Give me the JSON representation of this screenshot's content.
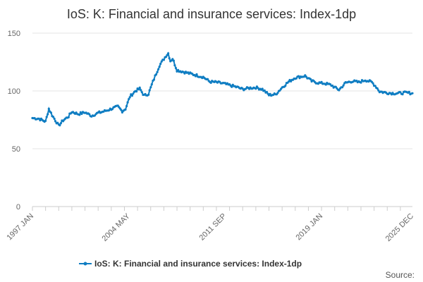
{
  "chart_data": {
    "type": "line",
    "title": "IoS: K: Financial and insurance services: Index-1dp",
    "xlabel": "",
    "ylabel": "",
    "x_range": [
      "1997 JAN",
      "2025 DEC"
    ],
    "x_tick_labels": [
      "1997 JAN",
      "2004 MAY",
      "2011 SEP",
      "2019 JAN",
      "2025 DEC"
    ],
    "ylim": [
      0,
      150
    ],
    "y_tick_values": [
      0,
      50,
      100,
      150
    ],
    "y_tick_labels": [
      "0",
      "50",
      "100",
      "150"
    ],
    "grid": true,
    "legend_position": "bottom",
    "series": [
      {
        "name": "IoS: K: Financial and insurance services: Index-1dp",
        "color": "#0f7dc2",
        "frequency": "monthly",
        "anchor_points": [
          [
            "1997-01",
            76.5
          ],
          [
            "1997-07",
            76.0
          ],
          [
            "1998-01",
            73.5
          ],
          [
            "1998-04",
            84.5
          ],
          [
            "1998-07",
            79.0
          ],
          [
            "1999-01",
            70.0
          ],
          [
            "1999-05",
            74.5
          ],
          [
            "1999-10",
            78.0
          ],
          [
            "2000-01",
            82.0
          ],
          [
            "2000-07",
            80.0
          ],
          [
            "2001-01",
            81.5
          ],
          [
            "2001-07",
            78.5
          ],
          [
            "2002-01",
            81.0
          ],
          [
            "2002-07",
            82.5
          ],
          [
            "2003-01",
            84.5
          ],
          [
            "2003-07",
            86.5
          ],
          [
            "2003-11",
            82.5
          ],
          [
            "2004-02",
            84.5
          ],
          [
            "2004-06",
            95.0
          ],
          [
            "2004-11",
            100.0
          ],
          [
            "2005-03",
            102.0
          ],
          [
            "2005-07",
            96.0
          ],
          [
            "2005-11",
            97.5
          ],
          [
            "2006-03",
            108.0
          ],
          [
            "2006-09",
            122.0
          ],
          [
            "2007-03",
            130.5
          ],
          [
            "2007-05",
            132.5
          ],
          [
            "2007-07",
            126.0
          ],
          [
            "2007-09",
            128.0
          ],
          [
            "2008-01",
            118.0
          ],
          [
            "2008-07",
            116.5
          ],
          [
            "2009-01",
            115.0
          ],
          [
            "2009-07",
            113.5
          ],
          [
            "2010-01",
            112.0
          ],
          [
            "2010-07",
            108.0
          ],
          [
            "2011-01",
            107.5
          ],
          [
            "2011-07",
            106.5
          ],
          [
            "2012-01",
            105.0
          ],
          [
            "2012-07",
            103.5
          ],
          [
            "2013-01",
            101.5
          ],
          [
            "2013-07",
            102.5
          ],
          [
            "2014-01",
            103.0
          ],
          [
            "2014-07",
            101.5
          ],
          [
            "2015-01",
            96.5
          ],
          [
            "2015-07",
            97.0
          ],
          [
            "2016-01",
            103.0
          ],
          [
            "2016-07",
            108.0
          ],
          [
            "2017-01",
            111.5
          ],
          [
            "2017-07",
            112.5
          ],
          [
            "2017-10",
            113.0
          ],
          [
            "2018-04",
            108.5
          ],
          [
            "2018-10",
            107.0
          ],
          [
            "2019-04",
            106.5
          ],
          [
            "2019-10",
            105.0
          ],
          [
            "2020-02",
            102.5
          ],
          [
            "2020-05",
            101.0
          ],
          [
            "2020-11",
            107.0
          ],
          [
            "2021-05",
            108.5
          ],
          [
            "2021-11",
            107.5
          ],
          [
            "2022-05",
            109.5
          ],
          [
            "2022-11",
            107.5
          ],
          [
            "2023-03",
            103.5
          ],
          [
            "2023-06",
            99.5
          ],
          [
            "2023-12",
            98.5
          ],
          [
            "2024-06",
            98.0
          ],
          [
            "2024-12",
            98.0
          ],
          [
            "2025-06",
            98.5
          ],
          [
            "2025-12",
            98.0
          ]
        ]
      }
    ]
  },
  "source_label": "Source:"
}
